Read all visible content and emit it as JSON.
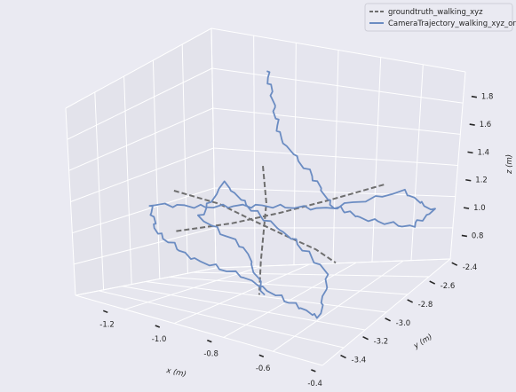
{
  "chart_data": {
    "type": "line",
    "title": "",
    "xlabel": "x (m)",
    "ylabel": "y (m)",
    "zlabel": "z (m)",
    "xlim": [
      -1.3,
      -0.35
    ],
    "ylim": [
      -3.5,
      -2.35
    ],
    "zlim": [
      0.7,
      1.9
    ],
    "x_ticks": [
      "-1.2",
      "-1.0",
      "-0.8",
      "-0.6",
      "-0.4"
    ],
    "y_ticks": [
      "-2.4",
      "-2.6",
      "-2.8",
      "-3.0",
      "-3.2",
      "-3.4"
    ],
    "z_ticks": [
      "0.8",
      "1.0",
      "1.2",
      "1.4",
      "1.6",
      "1.8"
    ],
    "grid": true,
    "legend_position": "top-right",
    "colors": {
      "groundtruth": "#6e6e6e",
      "orb": "#6b8cc2",
      "background": "#eaeaf2"
    },
    "series": [
      {
        "name": "groundtruth_walking_xyz",
        "style": "dashed",
        "color": "#6e6e6e",
        "points": [
          [
            -1.2,
            -2.9,
            1.3
          ],
          [
            -1.0,
            -2.95,
            1.27
          ],
          [
            -0.85,
            -3.0,
            1.22
          ],
          [
            -0.7,
            -3.05,
            1.18
          ],
          [
            -0.55,
            -3.1,
            1.15
          ],
          [
            -0.45,
            -3.15,
            1.12
          ],
          [
            -1.05,
            -3.2,
            1.15
          ],
          [
            -0.9,
            -3.05,
            1.2
          ],
          [
            -0.78,
            -2.9,
            1.24
          ],
          [
            -0.65,
            -2.75,
            1.28
          ],
          [
            -0.5,
            -2.6,
            1.32
          ],
          [
            -0.78,
            -3.05,
            1.6
          ],
          [
            -0.78,
            -3.02,
            1.35
          ],
          [
            -0.8,
            -3.0,
            1.15
          ],
          [
            -0.82,
            -2.98,
            0.95
          ],
          [
            -0.84,
            -2.95,
            0.72
          ]
        ]
      },
      {
        "name": "CameraTrajectory_walking_xyz_orb",
        "style": "solid",
        "color": "#6b8cc2",
        "points": [
          [
            -0.95,
            -2.65,
            2.05
          ],
          [
            -0.9,
            -2.7,
            1.85
          ],
          [
            -0.85,
            -2.75,
            1.65
          ],
          [
            -0.7,
            -2.8,
            1.45
          ],
          [
            -0.6,
            -2.85,
            1.3
          ],
          [
            -0.55,
            -2.7,
            1.15
          ],
          [
            -0.4,
            -2.6,
            1.05
          ],
          [
            -0.35,
            -2.5,
            1.1
          ],
          [
            -0.45,
            -2.55,
            1.25
          ],
          [
            -0.6,
            -2.9,
            1.3
          ],
          [
            -0.8,
            -3.0,
            1.32
          ],
          [
            -1.0,
            -3.05,
            1.28
          ],
          [
            -1.2,
            -3.1,
            1.25
          ],
          [
            -1.15,
            -3.15,
            1.1
          ],
          [
            -1.0,
            -3.2,
            1.0
          ],
          [
            -0.8,
            -3.2,
            0.95
          ],
          [
            -0.6,
            -3.25,
            0.88
          ],
          [
            -0.45,
            -3.3,
            0.85
          ],
          [
            -0.5,
            -3.1,
            1.0
          ],
          [
            -0.7,
            -2.95,
            1.1
          ],
          [
            -0.9,
            -2.85,
            1.2
          ],
          [
            -1.05,
            -2.8,
            1.35
          ],
          [
            -1.1,
            -2.9,
            1.15
          ],
          [
            -0.85,
            -3.05,
            1.05
          ],
          [
            -0.75,
            -3.1,
            0.8
          ]
        ]
      }
    ]
  }
}
